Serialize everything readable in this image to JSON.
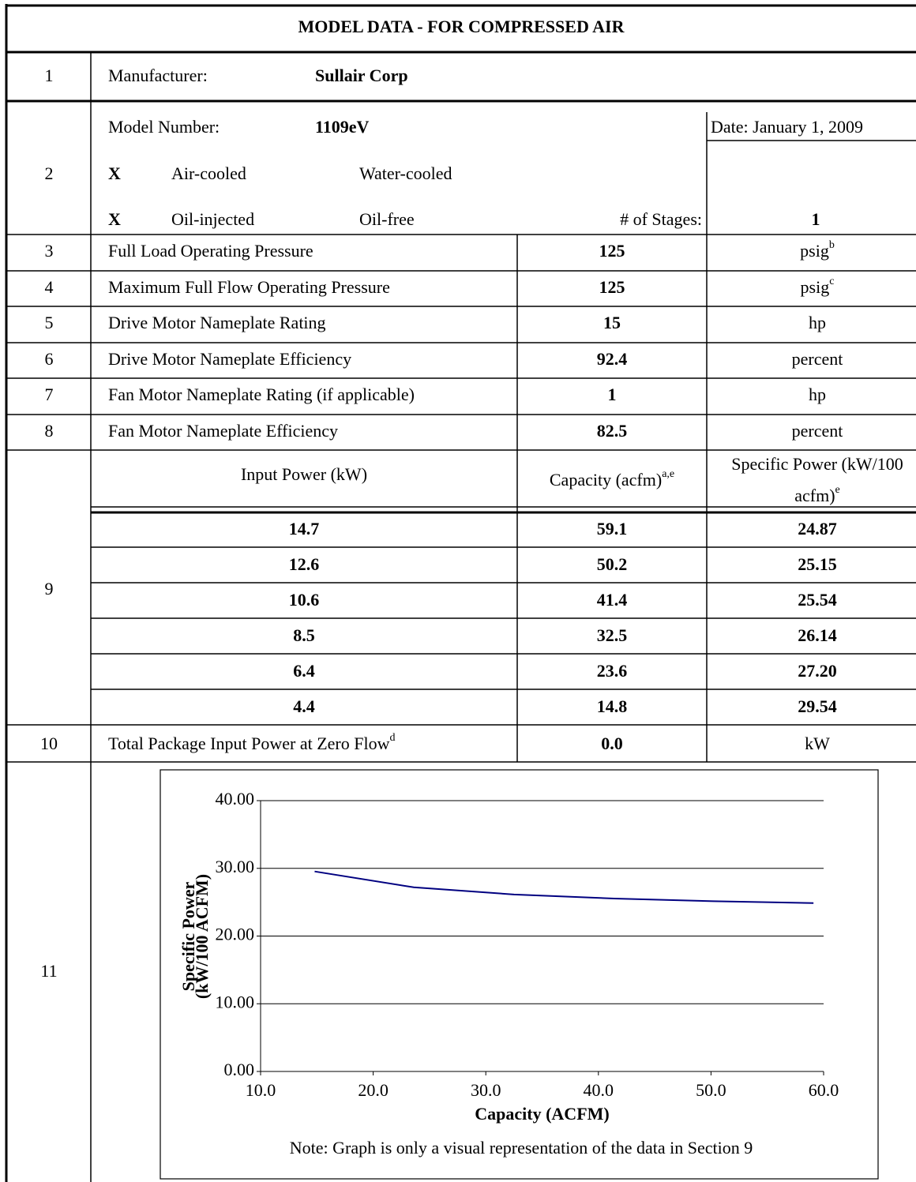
{
  "title": "MODEL DATA - FOR COMPRESSED AIR",
  "manufacturer": {
    "number": "1",
    "label": "Manufacturer:",
    "value": "Sullair Corp"
  },
  "model": {
    "number": "2",
    "label": "Model Number:",
    "value": "1109eV",
    "date": "Date: January 1, 2009",
    "cooling": {
      "mark": "X",
      "options": [
        "Air-cooled",
        "Water-cooled"
      ]
    },
    "lubrication": {
      "mark": "X",
      "options": [
        "Oil-injected",
        "Oil-free"
      ]
    },
    "stages_label": "# of Stages:",
    "stages": "1"
  },
  "specs": [
    {
      "number": "3",
      "label": "Full Load Operating Pressure",
      "value": "125",
      "unit": "psig",
      "unit_sup": "b"
    },
    {
      "number": "4",
      "label": "Maximum Full Flow Operating Pressure",
      "value": "125",
      "unit": "psig",
      "unit_sup": "c"
    },
    {
      "number": "5",
      "label": "Drive Motor Nameplate Rating",
      "value": "15",
      "unit": "hp"
    },
    {
      "number": "6",
      "label": "Drive Motor Nameplate Efficiency",
      "value": "92.4",
      "unit": "percent"
    },
    {
      "number": "7",
      "label": "Fan Motor Nameplate Rating (if applicable)",
      "value": "1",
      "unit": "hp"
    },
    {
      "number": "8",
      "label": "Fan Motor Nameplate Efficiency",
      "value": "82.5",
      "unit": "percent"
    }
  ],
  "performance": {
    "number": "9",
    "headers": [
      {
        "text": "Input Power (kW)"
      },
      {
        "text": "Capacity (acfm)",
        "sup": "a,e"
      },
      {
        "lines": [
          "Specific Power (kW/100",
          "acfm)"
        ],
        "sup": "e"
      }
    ],
    "rows": [
      [
        "14.7",
        "59.1",
        "24.87"
      ],
      [
        "12.6",
        "50.2",
        "25.15"
      ],
      [
        "10.6",
        "41.4",
        "25.54"
      ],
      [
        "8.5",
        "32.5",
        "26.14"
      ],
      [
        "6.4",
        "23.6",
        "27.20"
      ],
      [
        "4.4",
        "14.8",
        "29.54"
      ]
    ]
  },
  "zero_flow": {
    "number": "10",
    "label": "Total Package Input Power at Zero Flow",
    "label_sup": "d",
    "value": "0.0",
    "unit": "kW"
  },
  "graph": {
    "number": "11",
    "type": "line",
    "color": "#000080",
    "x": [
      59.1,
      50.2,
      41.4,
      32.5,
      23.6,
      14.8
    ],
    "values": [
      24.87,
      25.15,
      25.54,
      26.14,
      27.2,
      29.54
    ],
    "xlim": [
      10,
      60
    ],
    "ylim": [
      0,
      40
    ],
    "xticks": [
      {
        "value": 10,
        "label": "10.0"
      },
      {
        "value": 20,
        "label": "20.0"
      },
      {
        "value": 30,
        "label": "30.0"
      },
      {
        "value": 40,
        "label": "40.0"
      },
      {
        "value": 50,
        "label": "50.0"
      },
      {
        "value": 60,
        "label": "60.0"
      }
    ],
    "yticks": [
      {
        "value": 0,
        "label": "0.00"
      },
      {
        "value": 10,
        "label": "10.00"
      },
      {
        "value": 20,
        "label": "20.00"
      },
      {
        "value": 30,
        "label": "30.00"
      },
      {
        "value": 40,
        "label": "40.00"
      }
    ],
    "grid": true,
    "x_label": "Capacity (ACFM)",
    "y_label": [
      "Specific Power",
      "(kW/100 ACFM)"
    ],
    "note": "Note:  Graph is only a visual representation of the data in Section 9"
  }
}
